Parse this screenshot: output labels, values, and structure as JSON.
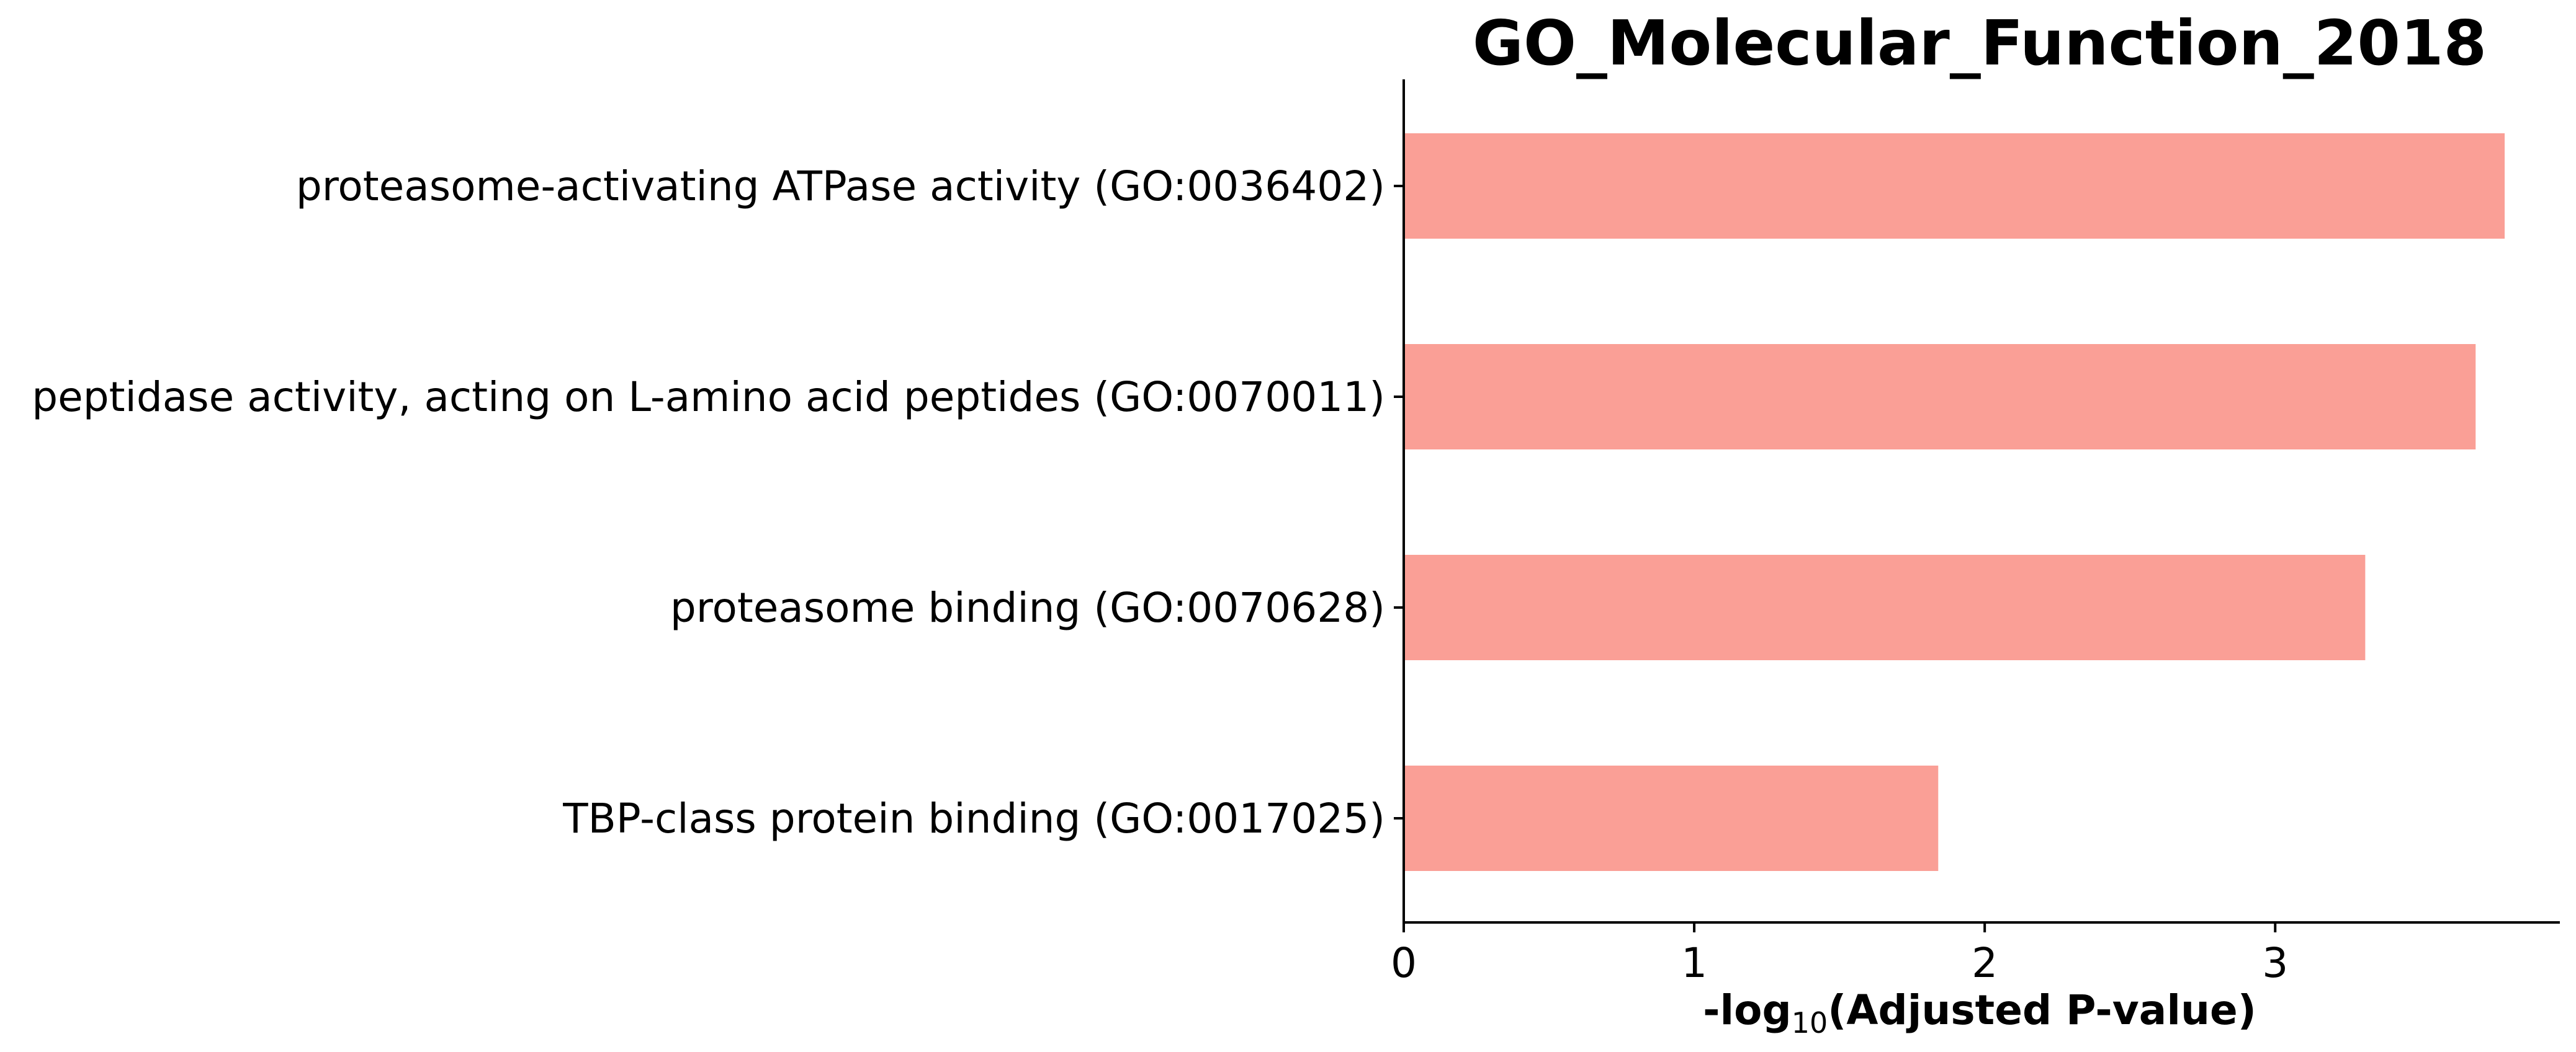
{
  "chart_data": {
    "type": "bar",
    "orientation": "horizontal",
    "title": "GO_Molecular_Function_2018",
    "xlabel_main": "-log",
    "xlabel_sub": "10",
    "xlabel_rest": "(Adjusted P-value)",
    "categories": [
      "proteasome-activating ATPase activity (GO:0036402)",
      "peptidase activity, acting on L-amino acid peptides (GO:0070011)",
      "proteasome binding (GO:0070628)",
      "TBP-class protein binding (GO:0017025)"
    ],
    "values": [
      3.79,
      3.69,
      3.31,
      1.84
    ],
    "xlim": [
      0,
      3.98
    ],
    "xticks": [
      0,
      1,
      2,
      3
    ],
    "xtick_labels": [
      "0",
      "1",
      "2",
      "3"
    ],
    "bar_color": "#fa9f96",
    "grid": false
  }
}
